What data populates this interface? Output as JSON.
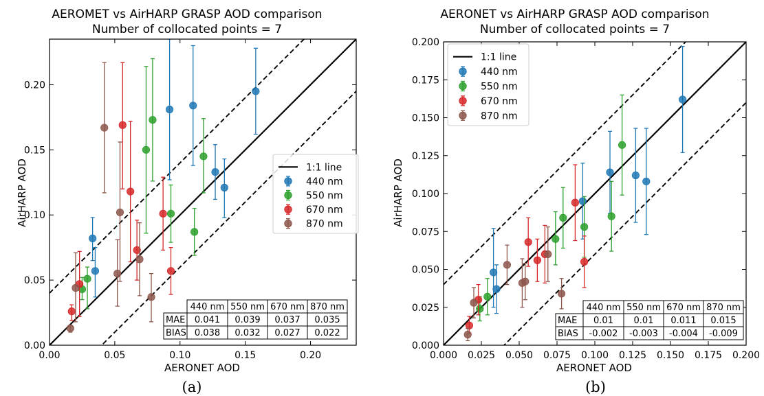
{
  "colors": {
    "440 nm": "#1f77b4",
    "550 nm": "#2ca02c",
    "670 nm": "#d62728",
    "870 nm": "#8c564b"
  },
  "chart_data": [
    {
      "type": "scatter",
      "title": "AEROMET vs AirHARP GRASP AOD comparison",
      "subtitle": "Number of collocated points = 7",
      "xlabel": "AERONET AOD",
      "ylabel": "AirHARP AOD",
      "caption": "(a)",
      "xlim": [
        0,
        0.235
      ],
      "ylim": [
        0,
        0.235
      ],
      "xticks": [
        "0.00",
        "0.05",
        "0.10",
        "0.15",
        "0.20"
      ],
      "yticks": [
        "0.00",
        "0.05",
        "0.10",
        "0.15",
        "0.20"
      ],
      "grid": false,
      "legend_position": "center-right",
      "legend": [
        "1:1 line",
        "440 nm",
        "550 nm",
        "670 nm",
        "870 nm"
      ],
      "reference_lines": [
        {
          "name": "1:1 line",
          "style": "solid",
          "offset": 0
        },
        {
          "style": "dashed",
          "offset": 0.04
        },
        {
          "style": "dashed",
          "offset": -0.04
        }
      ],
      "series": [
        {
          "name": "440 nm",
          "points": [
            {
              "x": 0.033,
              "y": 0.082,
              "lo": 0.065,
              "hi": 0.098
            },
            {
              "x": 0.035,
              "y": 0.057,
              "lo": 0.037,
              "hi": 0.075
            },
            {
              "x": 0.092,
              "y": 0.181,
              "lo": 0.127,
              "hi": 0.235
            },
            {
              "x": 0.11,
              "y": 0.184,
              "lo": 0.138,
              "hi": 0.23
            },
            {
              "x": 0.127,
              "y": 0.133,
              "lo": 0.112,
              "hi": 0.154
            },
            {
              "x": 0.134,
              "y": 0.121,
              "lo": 0.098,
              "hi": 0.143
            },
            {
              "x": 0.158,
              "y": 0.195,
              "lo": 0.162,
              "hi": 0.228
            }
          ]
        },
        {
          "name": "550 nm",
          "points": [
            {
              "x": 0.025,
              "y": 0.043,
              "lo": 0.035,
              "hi": 0.052
            },
            {
              "x": 0.029,
              "y": 0.051,
              "lo": 0.028,
              "hi": 0.06
            },
            {
              "x": 0.074,
              "y": 0.15,
              "lo": 0.086,
              "hi": 0.214
            },
            {
              "x": 0.079,
              "y": 0.173,
              "lo": 0.126,
              "hi": 0.22
            },
            {
              "x": 0.093,
              "y": 0.101,
              "lo": 0.079,
              "hi": 0.123
            },
            {
              "x": 0.111,
              "y": 0.087,
              "lo": 0.069,
              "hi": 0.105
            },
            {
              "x": 0.118,
              "y": 0.145,
              "lo": 0.117,
              "hi": 0.174
            }
          ]
        },
        {
          "name": "670 nm",
          "points": [
            {
              "x": 0.017,
              "y": 0.026,
              "lo": 0.019,
              "hi": 0.031
            },
            {
              "x": 0.023,
              "y": 0.047,
              "lo": 0.022,
              "hi": 0.072
            },
            {
              "x": 0.056,
              "y": 0.169,
              "lo": 0.12,
              "hi": 0.217
            },
            {
              "x": 0.062,
              "y": 0.118,
              "lo": 0.064,
              "hi": 0.172
            },
            {
              "x": 0.067,
              "y": 0.073,
              "lo": 0.05,
              "hi": 0.096
            },
            {
              "x": 0.087,
              "y": 0.101,
              "lo": 0.073,
              "hi": 0.129
            },
            {
              "x": 0.093,
              "y": 0.057,
              "lo": 0.039,
              "hi": 0.075
            }
          ]
        },
        {
          "name": "870 nm",
          "points": [
            {
              "x": 0.016,
              "y": 0.013,
              "lo": 0.01,
              "hi": 0.015
            },
            {
              "x": 0.02,
              "y": 0.044,
              "lo": 0.018,
              "hi": 0.071
            },
            {
              "x": 0.042,
              "y": 0.167,
              "lo": 0.117,
              "hi": 0.217
            },
            {
              "x": 0.052,
              "y": 0.055,
              "lo": 0.03,
              "hi": 0.081
            },
            {
              "x": 0.054,
              "y": 0.102,
              "lo": 0.049,
              "hi": 0.156
            },
            {
              "x": 0.069,
              "y": 0.066,
              "lo": 0.038,
              "hi": 0.094
            },
            {
              "x": 0.078,
              "y": 0.037,
              "lo": 0.018,
              "hi": 0.055
            }
          ]
        }
      ],
      "stats_table": {
        "columns": [
          "440 nm",
          "550 nm",
          "670 nm",
          "870 nm"
        ],
        "rows": [
          {
            "label": "MAE",
            "values": [
              "0.041",
              "0.039",
              "0.037",
              "0.035"
            ]
          },
          {
            "label": "BIAS",
            "values": [
              "0.038",
              "0.032",
              "0.027",
              "0.022"
            ]
          }
        ]
      }
    },
    {
      "type": "scatter",
      "title": "AERONET vs AirHARP GRASP AOD comparison",
      "subtitle": "Number of collocated points = 7",
      "xlabel": "AERONET AOD",
      "ylabel": "AirHARP AOD",
      "caption": "(b)",
      "xlim": [
        0,
        0.2
      ],
      "ylim": [
        0,
        0.2
      ],
      "xticks": [
        "0.000",
        "0.025",
        "0.050",
        "0.075",
        "0.100",
        "0.125",
        "0.150",
        "0.175",
        "0.200"
      ],
      "yticks": [
        "0.000",
        "0.025",
        "0.050",
        "0.075",
        "0.100",
        "0.125",
        "0.150",
        "0.175",
        "0.200"
      ],
      "grid": false,
      "legend_position": "upper-left",
      "legend": [
        "1:1 line",
        "440 nm",
        "550 nm",
        "670 nm",
        "870 nm"
      ],
      "reference_lines": [
        {
          "name": "1:1 line",
          "style": "solid",
          "offset": 0
        },
        {
          "style": "dashed",
          "offset": 0.04
        },
        {
          "style": "dashed",
          "offset": -0.04
        }
      ],
      "series": [
        {
          "name": "440 nm",
          "points": [
            {
              "x": 0.033,
              "y": 0.048,
              "lo": 0.025,
              "hi": 0.077
            },
            {
              "x": 0.035,
              "y": 0.037,
              "lo": 0.021,
              "hi": 0.053
            },
            {
              "x": 0.092,
              "y": 0.095,
              "lo": 0.07,
              "hi": 0.12
            },
            {
              "x": 0.11,
              "y": 0.114,
              "lo": 0.087,
              "hi": 0.141
            },
            {
              "x": 0.127,
              "y": 0.112,
              "lo": 0.081,
              "hi": 0.143
            },
            {
              "x": 0.134,
              "y": 0.108,
              "lo": 0.073,
              "hi": 0.143
            },
            {
              "x": 0.158,
              "y": 0.162,
              "lo": 0.127,
              "hi": 0.197
            }
          ]
        },
        {
          "name": "550 nm",
          "points": [
            {
              "x": 0.024,
              "y": 0.024,
              "lo": 0.016,
              "hi": 0.032
            },
            {
              "x": 0.029,
              "y": 0.032,
              "lo": 0.02,
              "hi": 0.044
            },
            {
              "x": 0.074,
              "y": 0.07,
              "lo": 0.053,
              "hi": 0.088
            },
            {
              "x": 0.079,
              "y": 0.084,
              "lo": 0.064,
              "hi": 0.104
            },
            {
              "x": 0.093,
              "y": 0.078,
              "lo": 0.058,
              "hi": 0.098
            },
            {
              "x": 0.111,
              "y": 0.085,
              "lo": 0.062,
              "hi": 0.108
            },
            {
              "x": 0.118,
              "y": 0.132,
              "lo": 0.099,
              "hi": 0.165
            }
          ]
        },
        {
          "name": "670 nm",
          "points": [
            {
              "x": 0.017,
              "y": 0.013,
              "lo": 0.008,
              "hi": 0.019
            },
            {
              "x": 0.023,
              "y": 0.03,
              "lo": 0.02,
              "hi": 0.04
            },
            {
              "x": 0.056,
              "y": 0.068,
              "lo": 0.052,
              "hi": 0.084
            },
            {
              "x": 0.062,
              "y": 0.056,
              "lo": 0.042,
              "hi": 0.07
            },
            {
              "x": 0.067,
              "y": 0.06,
              "lo": 0.041,
              "hi": 0.079
            },
            {
              "x": 0.087,
              "y": 0.094,
              "lo": 0.069,
              "hi": 0.119
            },
            {
              "x": 0.093,
              "y": 0.055,
              "lo": 0.038,
              "hi": 0.072
            }
          ]
        },
        {
          "name": "870 nm",
          "points": [
            {
              "x": 0.016,
              "y": 0.007,
              "lo": 0.003,
              "hi": 0.011
            },
            {
              "x": 0.02,
              "y": 0.028,
              "lo": 0.018,
              "hi": 0.038
            },
            {
              "x": 0.042,
              "y": 0.053,
              "lo": 0.04,
              "hi": 0.066
            },
            {
              "x": 0.052,
              "y": 0.041,
              "lo": 0.025,
              "hi": 0.057
            },
            {
              "x": 0.054,
              "y": 0.042,
              "lo": 0.03,
              "hi": 0.054
            },
            {
              "x": 0.069,
              "y": 0.06,
              "lo": 0.042,
              "hi": 0.078
            },
            {
              "x": 0.078,
              "y": 0.034,
              "lo": 0.024,
              "hi": 0.044
            }
          ]
        }
      ],
      "stats_table": {
        "columns": [
          "440 nm",
          "550 nm",
          "670 nm",
          "870 nm"
        ],
        "rows": [
          {
            "label": "MAE",
            "values": [
              "0.01",
              "0.01",
              "0.011",
              "0.015"
            ]
          },
          {
            "label": "BIAS",
            "values": [
              "-0.002",
              "-0.003",
              "-0.004",
              "-0.009"
            ]
          }
        ]
      }
    }
  ]
}
